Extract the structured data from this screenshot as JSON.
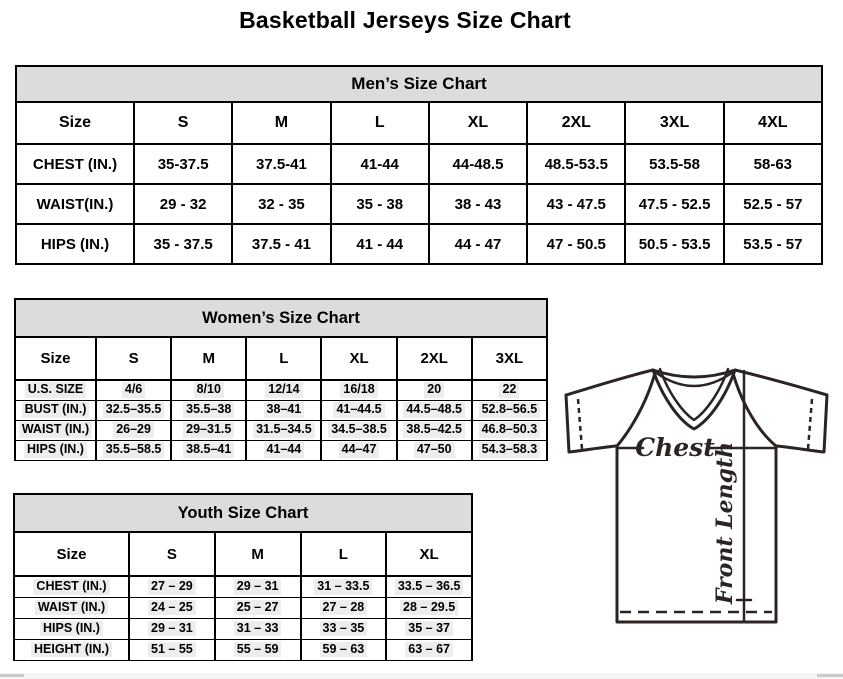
{
  "title": "Basketball Jerseys Size Chart",
  "tables": {
    "men": {
      "title": "Men’s Size Chart",
      "columns": [
        "Size",
        "S",
        "M",
        "L",
        "XL",
        "2XL",
        "3XL",
        "4XL"
      ],
      "rows": [
        {
          "label": "CHEST (IN.)",
          "values": [
            "35-37.5",
            "37.5-41",
            "41-44",
            "44-48.5",
            "48.5-53.5",
            "53.5-58",
            "58-63"
          ]
        },
        {
          "label": "WAIST(IN.)",
          "values": [
            "29 - 32",
            "32 - 35",
            "35 - 38",
            "38 - 43",
            "43 - 47.5",
            "47.5 - 52.5",
            "52.5 - 57"
          ]
        },
        {
          "label": "HIPS (IN.)",
          "values": [
            "35 - 37.5",
            "37.5 - 41",
            "41 - 44",
            "44 - 47",
            "47 - 50.5",
            "50.5 - 53.5",
            "53.5 - 57"
          ]
        }
      ]
    },
    "women": {
      "title": "Women’s Size Chart",
      "columns": [
        "Size",
        "S",
        "M",
        "L",
        "XL",
        "2XL",
        "3XL"
      ],
      "rows": [
        {
          "label": "U.S. SIZE",
          "values": [
            "4/6",
            "8/10",
            "12/14",
            "16/18",
            "20",
            "22"
          ]
        },
        {
          "label": "BUST (IN.)",
          "values": [
            "32.5–35.5",
            "35.5–38",
            "38–41",
            "41–44.5",
            "44.5–48.5",
            "52.8–56.5"
          ]
        },
        {
          "label": "WAIST (IN.)",
          "values": [
            "26–29",
            "29–31.5",
            "31.5–34.5",
            "34.5–38.5",
            "38.5–42.5",
            "46.8–50.3"
          ]
        },
        {
          "label": "HIPS (IN.)",
          "values": [
            "35.5–58.5",
            "38.5–41",
            "41–44",
            "44–47",
            "47–50",
            "54.3–58.3"
          ]
        }
      ]
    },
    "youth": {
      "title": "Youth Size Chart",
      "columns": [
        "Size",
        "S",
        "M",
        "L",
        "XL"
      ],
      "rows": [
        {
          "label": "CHEST (IN.)",
          "values": [
            "27 – 29",
            "29 – 31",
            "31 – 33.5",
            "33.5 – 36.5"
          ]
        },
        {
          "label": "WAIST (IN.)",
          "values": [
            "24 – 25",
            "25 – 27",
            "27 – 28",
            "28 – 29.5"
          ]
        },
        {
          "label": "HIPS (IN.)",
          "values": [
            "29 – 31",
            "31 – 33",
            "33 – 35",
            "35 – 37"
          ]
        },
        {
          "label": "HEIGHT (IN.)",
          "values": [
            "51 – 55",
            "55 – 59",
            "59 – 63",
            "63 – 67"
          ]
        }
      ]
    }
  },
  "diagram": {
    "chest_label": "Chest",
    "front_length_label": "Front Length"
  },
  "colors": {
    "table_header_bg": "#dcdcdc",
    "value_highlight_bg": "#ededed",
    "diagram_line": "#2b2422"
  }
}
